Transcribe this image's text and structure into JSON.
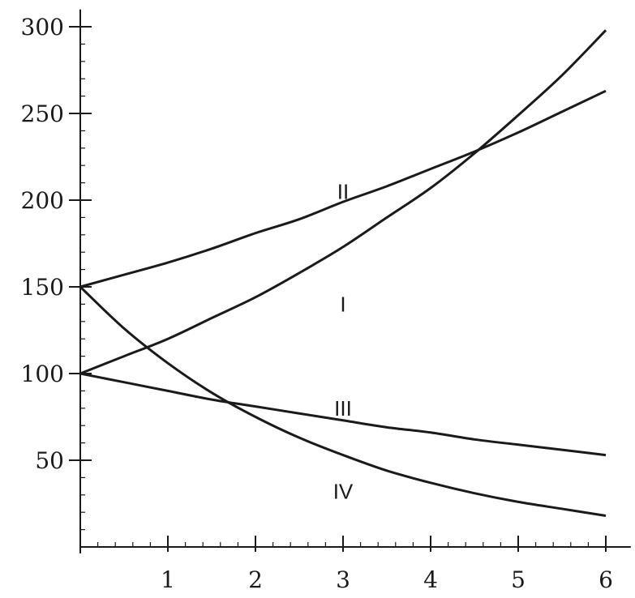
{
  "chart_data": {
    "type": "line",
    "title": "",
    "xlabel": "",
    "ylabel": "",
    "xlim": [
      0,
      6.1
    ],
    "ylim": [
      0,
      310
    ],
    "x_ticks": [
      "1",
      "2",
      "3",
      "4",
      "5",
      "6"
    ],
    "y_ticks": [
      "50",
      "100",
      "150",
      "200",
      "250",
      "300"
    ],
    "grid": false,
    "legend": "none",
    "series": [
      {
        "name": "I",
        "x": [
          0,
          0.5,
          1,
          1.5,
          2,
          2.5,
          3,
          3.5,
          4,
          4.5,
          5,
          5.5,
          6
        ],
        "y": [
          100,
          110,
          120,
          132,
          144,
          158,
          173,
          190,
          207,
          227,
          249,
          272,
          298
        ],
        "label_at": [
          3,
          140
        ]
      },
      {
        "name": "II",
        "x": [
          0,
          0.5,
          1,
          1.5,
          2,
          2.5,
          3,
          3.5,
          4,
          4.5,
          5,
          5.5,
          6
        ],
        "y": [
          150,
          157,
          164,
          172,
          181,
          189,
          199,
          208,
          218,
          228,
          239,
          251,
          263
        ],
        "label_at": [
          3,
          205
        ]
      },
      {
        "name": "III",
        "x": [
          0,
          0.5,
          1,
          1.5,
          2,
          2.5,
          3,
          3.5,
          4,
          4.5,
          5,
          5.5,
          6
        ],
        "y": [
          100,
          95,
          90,
          85,
          81,
          77,
          73,
          69,
          66,
          62,
          59,
          56,
          53
        ],
        "label_at": [
          3,
          80
        ]
      },
      {
        "name": "IV",
        "x": [
          0,
          0.5,
          1,
          1.5,
          2,
          2.5,
          3,
          3.5,
          4,
          4.5,
          5,
          5.5,
          6
        ],
        "y": [
          150,
          126,
          106,
          89,
          75,
          63,
          53,
          44,
          37,
          31,
          26,
          22,
          18
        ],
        "label_at": [
          3,
          32
        ]
      }
    ],
    "line_color": "#1a1a1a"
  }
}
